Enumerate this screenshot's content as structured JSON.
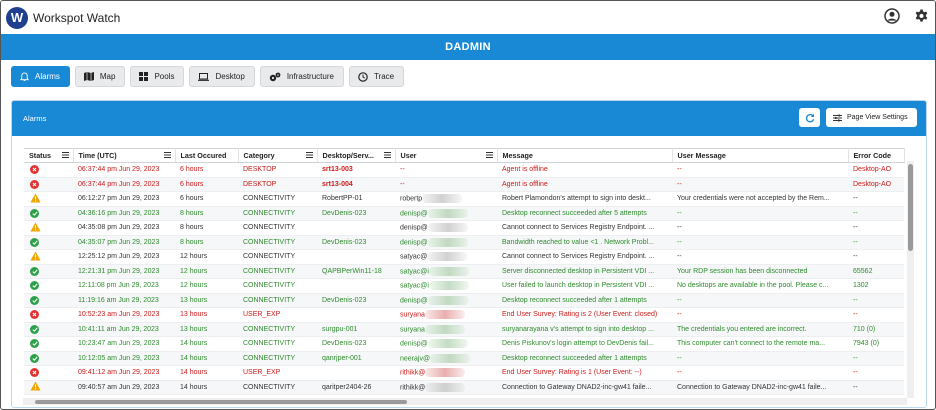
{
  "app": {
    "title": "Workspot Watch",
    "logo_letter": "W",
    "tenant": "DADMIN"
  },
  "colors": {
    "accent": "#1989d6",
    "error": "#cc1a1a",
    "success": "#2e8b2e",
    "warning": "#f0a500"
  },
  "nav": {
    "tabs": [
      {
        "label": "Alarms",
        "icon": "bell-icon",
        "active": true
      },
      {
        "label": "Map",
        "icon": "map-icon"
      },
      {
        "label": "Pools",
        "icon": "grid-icon"
      },
      {
        "label": "Desktop",
        "icon": "laptop-icon"
      },
      {
        "label": "Infrastructure",
        "icon": "gears-icon"
      },
      {
        "label": "Trace",
        "icon": "clock-icon"
      }
    ]
  },
  "panel": {
    "title": "Alarms",
    "settings_label": "Page View Settings"
  },
  "table": {
    "columns": [
      "Status",
      "Time (UTC)",
      "Last Occured",
      "Category",
      "Desktop/Serv...",
      "User",
      "Message",
      "User Message",
      "Error Code"
    ],
    "rows": [
      {
        "status": "error",
        "color": "red",
        "time": "06:37:44 pm Jun 29, 2023",
        "last": "6 hours",
        "category": "DESKTOP",
        "desktop": "srt13-003",
        "user": "--",
        "message": "Agent is offline",
        "user_message": "--",
        "code": "Desktop-AO"
      },
      {
        "status": "error",
        "color": "red",
        "time": "06:37:44 pm Jun 29, 2023",
        "last": "6 hours",
        "category": "DESKTOP",
        "desktop": "srt13-004",
        "user": "--",
        "message": "Agent is offline",
        "user_message": "--",
        "code": "Desktop-AO"
      },
      {
        "status": "warning",
        "color": "dark",
        "time": "06:12:27 pm Jun 29, 2023",
        "last": "6 hours",
        "category": "CONNECTIVITY",
        "desktop": "RobertPP-01",
        "user": "robertp",
        "message": "Robert Plamondon's attempt to sign into deskt...",
        "user_message": "Your credentials were not accepted by the Rem...",
        "code": "--"
      },
      {
        "status": "ok",
        "color": "green",
        "time": "04:36:16 pm Jun 29, 2023",
        "last": "8 hours",
        "category": "CONNECTIVITY",
        "desktop": "DevDenis-023",
        "user": "denisp@",
        "message": "Desktop reconnect succeeded after 5 attempts",
        "user_message": "--",
        "code": "--"
      },
      {
        "status": "warning",
        "color": "dark",
        "time": "04:35:08 pm Jun 29, 2023",
        "last": "8 hours",
        "category": "CONNECTIVITY",
        "desktop": "",
        "user": "denisp@",
        "message": "Cannot connect to Services Registry Endpoint. ...",
        "user_message": "--",
        "code": "--"
      },
      {
        "status": "ok",
        "color": "green",
        "time": "04:35:07 pm Jun 29, 2023",
        "last": "8 hours",
        "category": "CONNECTIVITY",
        "desktop": "DevDenis-023",
        "user": "denisp@",
        "message": "Bandwidth reached to value <1 . Network Probl...",
        "user_message": "--",
        "code": "--"
      },
      {
        "status": "warning",
        "color": "dark",
        "time": "12:25:12 pm Jun 29, 2023",
        "last": "12 hours",
        "category": "CONNECTIVITY",
        "desktop": "",
        "user": "satyac@",
        "message": "Cannot connect to Services Registry Endpoint. ...",
        "user_message": "--",
        "code": "--"
      },
      {
        "status": "ok",
        "color": "green",
        "time": "12:21:31 pm Jun 29, 2023",
        "last": "12 hours",
        "category": "CONNECTIVITY",
        "desktop": "QAPBPerWin11-18",
        "user": "satyac@i",
        "message": "Server disconnected desktop in Persistent VDI ...",
        "user_message": "Your RDP session has been disconnected",
        "code": "65562"
      },
      {
        "status": "ok",
        "color": "green",
        "time": "12:11:08 pm Jun 29, 2023",
        "last": "12 hours",
        "category": "CONNECTIVITY",
        "desktop": "",
        "user": "satyac@i",
        "message": "User failed to launch desktop in Persistent VDI ...",
        "user_message": "No desktops are available in the pool. Please c...",
        "code": "1302"
      },
      {
        "status": "ok",
        "color": "green",
        "time": "11:19:16 am Jun 29, 2023",
        "last": "13 hours",
        "category": "CONNECTIVITY",
        "desktop": "DevDenis-023",
        "user": "denisp@",
        "message": "Desktop reconnect succeeded after 1 attempts",
        "user_message": "--",
        "code": "--"
      },
      {
        "status": "error",
        "color": "red",
        "time": "10:52:23 am Jun 29, 2023",
        "last": "13 hours",
        "category": "USER_EXP",
        "desktop": "",
        "user": "suryana",
        "message": "End User Survey: Rating is 2 (User Event: closed)",
        "user_message": "--",
        "code": "--"
      },
      {
        "status": "ok",
        "color": "green",
        "time": "10:41:11 am Jun 29, 2023",
        "last": "13 hours",
        "category": "CONNECTIVITY",
        "desktop": "surgpu-001",
        "user": "suryana",
        "message": "suryanarayana v's attempt to sign into desktop ...",
        "user_message": "The credentials you entered are incorrect.",
        "code": "710 (0)"
      },
      {
        "status": "ok",
        "color": "green",
        "time": "10:23:47 am Jun 29, 2023",
        "last": "14 hours",
        "category": "CONNECTIVITY",
        "desktop": "DevDenis-023",
        "user": "denisp@",
        "message": "Denis Piskunov's login attempt to DevDenis fail...",
        "user_message": "This computer can't connect to the remote ma...",
        "code": "7943 (0)"
      },
      {
        "status": "ok",
        "color": "green",
        "time": "10:12:05 am Jun 29, 2023",
        "last": "14 hours",
        "category": "CONNECTIVITY",
        "desktop": "qanrjper-001",
        "user": "neerajv@",
        "message": "Desktop reconnect succeeded after 1 attempts",
        "user_message": "--",
        "code": "--"
      },
      {
        "status": "error",
        "color": "red",
        "time": "09:41:12 am Jun 29, 2023",
        "last": "14 hours",
        "category": "USER_EXP",
        "desktop": "",
        "user": "rithikk@",
        "message": "End User Survey: Rating is 1 (User Event: --)",
        "user_message": "--",
        "code": "--"
      },
      {
        "status": "warning",
        "color": "dark",
        "time": "09:40:57 am Jun 29, 2023",
        "last": "14 hours",
        "category": "CONNECTIVITY",
        "desktop": "qaritper2404-26",
        "user": "rithikk@",
        "message": "Connection to Gateway DNAD2-inc-gw41 faile...",
        "user_message": "Connection to Gateway DNAD2-inc-gw41 faile...",
        "code": "--"
      }
    ]
  }
}
